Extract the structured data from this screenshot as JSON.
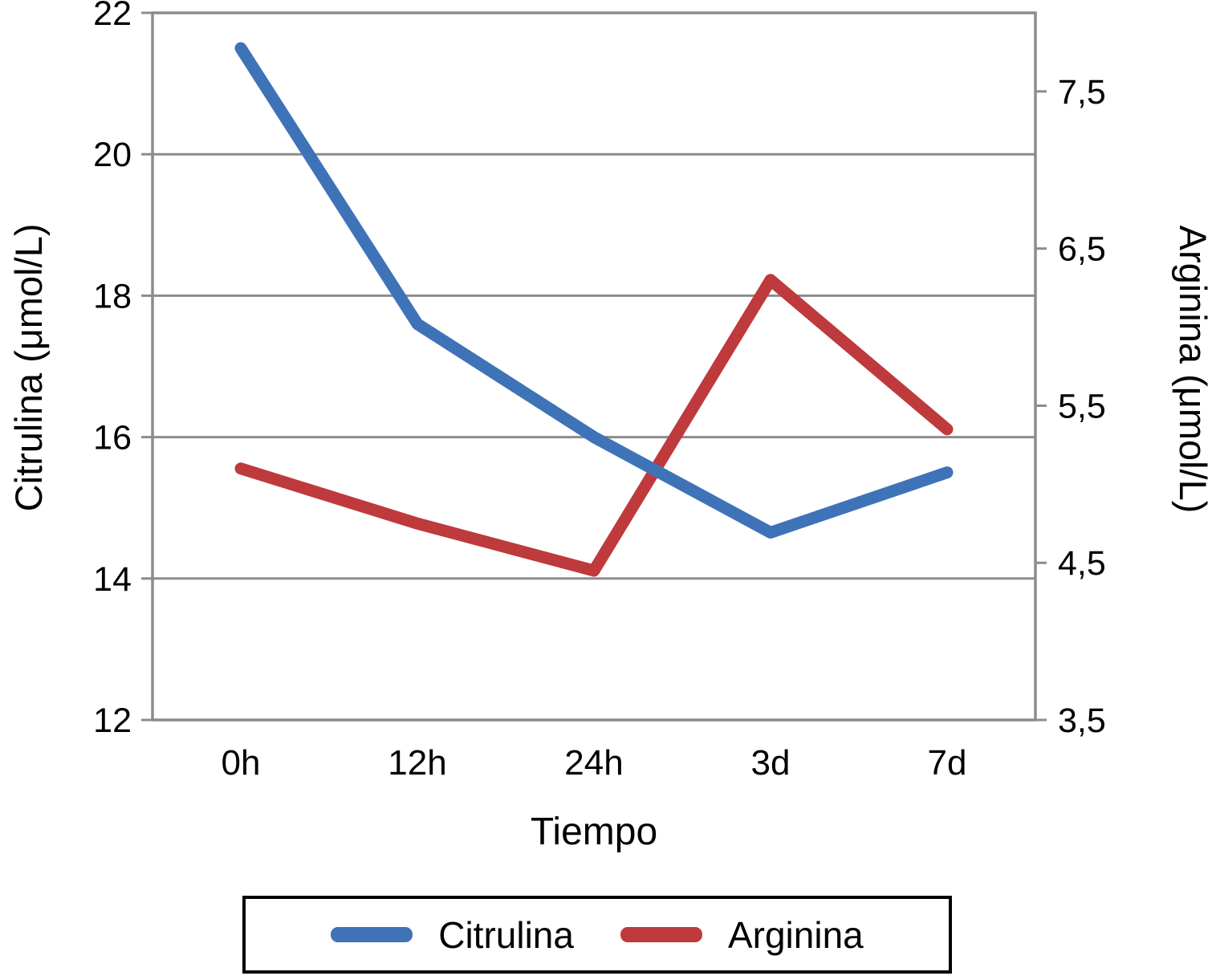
{
  "chart_data": {
    "type": "line",
    "categories": [
      "0h",
      "12h",
      "24h",
      "3d",
      "7d"
    ],
    "xlabel": "Tiempo",
    "series": [
      {
        "name": "Citrulina",
        "axis": "left",
        "color": "#3E73B8",
        "values": [
          21.5,
          17.6,
          16.0,
          14.65,
          15.5
        ]
      },
      {
        "name": "Arginina",
        "axis": "right",
        "color": "#BE3A3C",
        "values": [
          5.1,
          4.75,
          4.45,
          6.3,
          5.35
        ]
      }
    ],
    "left_axis": {
      "label": "Citrulina (μmol/L)",
      "min": 12,
      "max": 22,
      "ticks": [
        12,
        14,
        16,
        18,
        20,
        22
      ],
      "tick_labels": [
        "12",
        "14",
        "16",
        "18",
        "20",
        "22"
      ]
    },
    "right_axis": {
      "label": "Arginina (μmol/L)",
      "min": 3.5,
      "max": 8.0,
      "ticks": [
        3.5,
        4.5,
        5.5,
        6.5,
        7.5
      ],
      "tick_labels": [
        "3,5",
        "4,5",
        "5,5",
        "6,5",
        "7,5"
      ]
    },
    "grid": true,
    "legend_position": "bottom",
    "grid_color": "#8C8C8C",
    "text_color": "#000000"
  }
}
